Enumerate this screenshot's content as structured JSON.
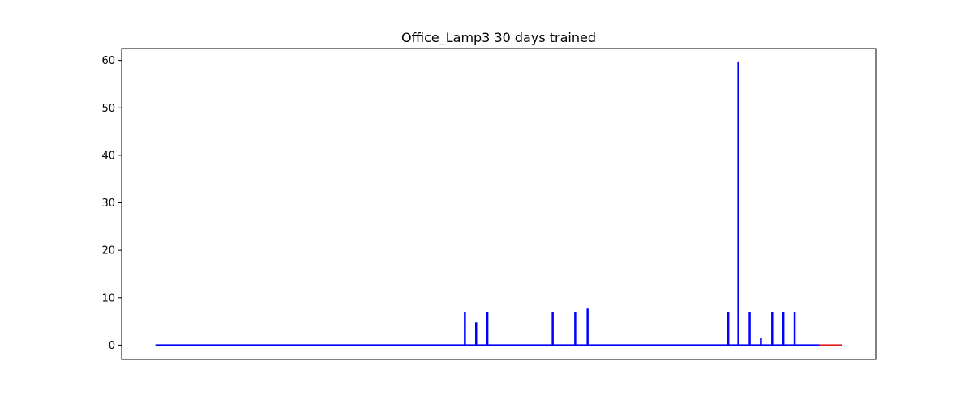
{
  "chart_data": {
    "type": "line",
    "title": "Office_Lamp3 30 days trained",
    "xlabel": "",
    "ylabel": "",
    "x_ticks_visible": false,
    "xlim": [
      -3,
      64
    ],
    "ylim": [
      -3,
      62.5
    ],
    "yticks": [
      0,
      10,
      20,
      30,
      40,
      50,
      60
    ],
    "grid": false,
    "legend": "none",
    "series": [
      {
        "color": "#0000ff",
        "x_start": 0,
        "x_end": 59,
        "baseline": 0,
        "spikes": [
          {
            "x": 27.5,
            "y": 7.0
          },
          {
            "x": 28.5,
            "y": 4.8
          },
          {
            "x": 29.5,
            "y": 7.0
          },
          {
            "x": 35.3,
            "y": 7.0
          },
          {
            "x": 37.3,
            "y": 7.0
          },
          {
            "x": 38.4,
            "y": 7.7
          },
          {
            "x": 50.9,
            "y": 7.0
          },
          {
            "x": 51.8,
            "y": 59.8
          },
          {
            "x": 52.8,
            "y": 7.0
          },
          {
            "x": 53.8,
            "y": 1.5
          },
          {
            "x": 54.8,
            "y": 7.0
          },
          {
            "x": 55.8,
            "y": 7.0
          },
          {
            "x": 56.8,
            "y": 7.0
          }
        ]
      },
      {
        "color": "#e31a1c",
        "x_start": 59,
        "x_end": 61,
        "baseline": 0,
        "spikes": []
      }
    ]
  }
}
